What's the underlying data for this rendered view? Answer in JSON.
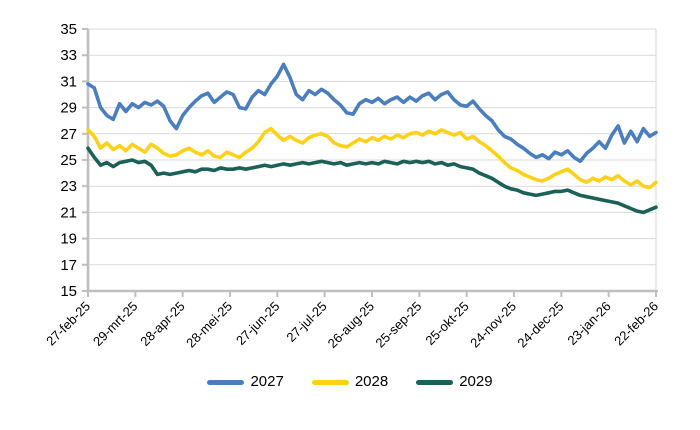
{
  "figure": {
    "background": "#FFFFFF"
  },
  "chart_data": {
    "type": "line",
    "title": "",
    "xlabel": "",
    "ylabel": "",
    "ylim": [
      15,
      35
    ],
    "y_ticks": [
      15,
      17,
      19,
      21,
      23,
      25,
      27,
      29,
      31,
      33,
      35
    ],
    "x_tick_labels": [
      "27-feb-25",
      "29-mrt-25",
      "28-apr-25",
      "28-mei-25",
      "27-jun-25",
      "27-jul-25",
      "26-aug-25",
      "25-sep-25",
      "25-okt-25",
      "24-nov-25",
      "24-dec-25",
      "23-jan-26",
      "22-feb-26"
    ],
    "x_tick_days": [
      0,
      30,
      60,
      90,
      120,
      150,
      180,
      210,
      240,
      270,
      300,
      330,
      360
    ],
    "x_max_day": 360,
    "x_step_days": 4,
    "grid": "horizontal",
    "legend_position": "bottom",
    "colors": {
      "axis": "#BFBFBF",
      "grid": "#D9D9D9",
      "plot_border": "#D9D9D9",
      "label": "#000000"
    },
    "series": [
      {
        "name": "2027",
        "color": "#4A7EBD",
        "values": [
          30.8,
          30.5,
          29.0,
          28.4,
          28.1,
          29.3,
          28.7,
          29.3,
          29.0,
          29.4,
          29.2,
          29.5,
          29.1,
          28.0,
          27.4,
          28.4,
          29.0,
          29.5,
          29.9,
          30.1,
          29.4,
          29.8,
          30.2,
          30.0,
          29.0,
          28.9,
          29.8,
          30.3,
          30.0,
          30.8,
          31.4,
          32.3,
          31.3,
          30.0,
          29.6,
          30.3,
          30.0,
          30.4,
          30.1,
          29.6,
          29.2,
          28.6,
          28.5,
          29.3,
          29.6,
          29.4,
          29.7,
          29.3,
          29.6,
          29.8,
          29.4,
          29.8,
          29.5,
          29.9,
          30.1,
          29.6,
          30.0,
          30.2,
          29.6,
          29.2,
          29.1,
          29.5,
          28.9,
          28.4,
          28.0,
          27.3,
          26.8,
          26.6,
          26.2,
          25.9,
          25.5,
          25.2,
          25.4,
          25.1,
          25.6,
          25.4,
          25.7,
          25.2,
          24.9,
          25.5,
          25.9,
          26.4,
          25.9,
          26.9,
          27.6,
          26.3,
          27.2,
          26.4,
          27.4,
          26.8,
          27.1
        ]
      },
      {
        "name": "2028",
        "color": "#FBD219",
        "values": [
          27.3,
          26.8,
          25.9,
          26.3,
          25.8,
          26.1,
          25.7,
          26.2,
          25.9,
          25.6,
          26.2,
          25.9,
          25.5,
          25.3,
          25.4,
          25.7,
          25.9,
          25.6,
          25.4,
          25.7,
          25.3,
          25.2,
          25.6,
          25.4,
          25.2,
          25.6,
          25.9,
          26.4,
          27.1,
          27.4,
          26.9,
          26.5,
          26.8,
          26.5,
          26.3,
          26.7,
          26.9,
          27.0,
          26.8,
          26.3,
          26.1,
          26.0,
          26.3,
          26.6,
          26.4,
          26.7,
          26.5,
          26.8,
          26.6,
          26.9,
          26.7,
          27.0,
          27.1,
          26.9,
          27.2,
          27.0,
          27.3,
          27.1,
          26.9,
          27.1,
          26.6,
          26.8,
          26.4,
          26.1,
          25.7,
          25.3,
          24.8,
          24.4,
          24.2,
          23.9,
          23.7,
          23.5,
          23.4,
          23.6,
          23.9,
          24.1,
          24.3,
          23.9,
          23.5,
          23.3,
          23.6,
          23.4,
          23.7,
          23.5,
          23.8,
          23.4,
          23.1,
          23.4,
          23.0,
          22.9,
          23.3
        ]
      },
      {
        "name": "2029",
        "color": "#1C6158",
        "values": [
          25.9,
          25.2,
          24.6,
          24.8,
          24.5,
          24.8,
          24.9,
          25.0,
          24.8,
          24.9,
          24.6,
          23.9,
          24.0,
          23.9,
          24.0,
          24.1,
          24.2,
          24.1,
          24.3,
          24.3,
          24.2,
          24.4,
          24.3,
          24.3,
          24.4,
          24.3,
          24.4,
          24.5,
          24.6,
          24.5,
          24.6,
          24.7,
          24.6,
          24.7,
          24.8,
          24.7,
          24.8,
          24.9,
          24.8,
          24.7,
          24.8,
          24.6,
          24.7,
          24.8,
          24.7,
          24.8,
          24.7,
          24.9,
          24.8,
          24.7,
          24.9,
          24.8,
          24.9,
          24.8,
          24.9,
          24.7,
          24.8,
          24.6,
          24.7,
          24.5,
          24.4,
          24.3,
          24.0,
          23.8,
          23.6,
          23.3,
          23.0,
          22.8,
          22.7,
          22.5,
          22.4,
          22.3,
          22.4,
          22.5,
          22.6,
          22.6,
          22.7,
          22.5,
          22.3,
          22.2,
          22.1,
          22.0,
          21.9,
          21.8,
          21.7,
          21.5,
          21.3,
          21.1,
          21.0,
          21.2,
          21.4
        ]
      }
    ]
  }
}
